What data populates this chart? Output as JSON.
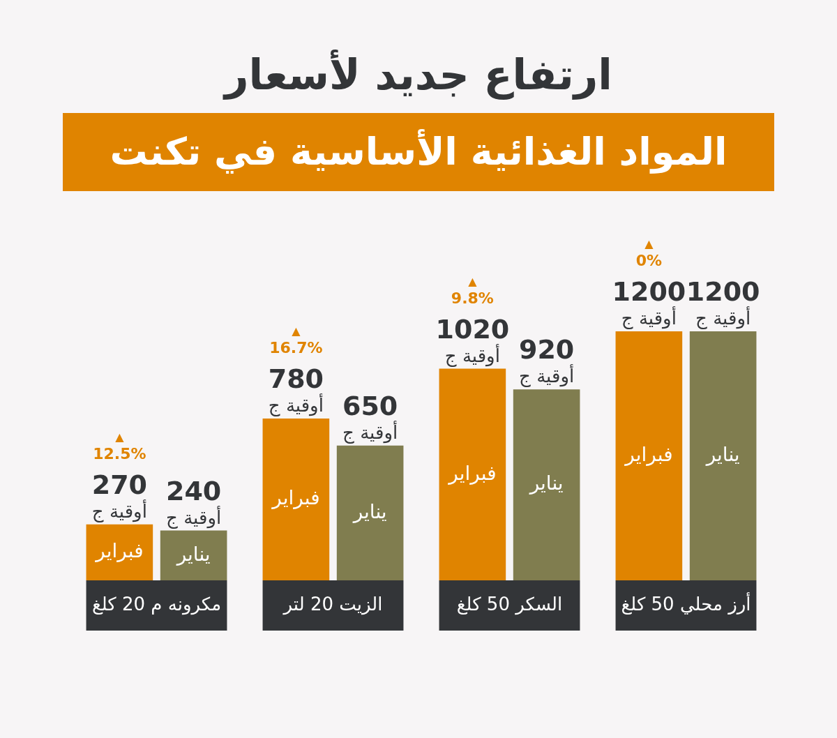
{
  "chart_data": {
    "type": "bar",
    "title": "ارتفاع جديد لأسعار",
    "subtitle": "المواد الغذائية الأساسية في تكنت",
    "categories": [
      "مكرونه م 20 كلغ",
      "الزيت 20 لتر",
      "السكر 50 كلغ",
      "أرز محلي 50 كلغ"
    ],
    "series": [
      {
        "name": "فبراير",
        "color": "#e08400",
        "values": [
          270,
          780,
          1020,
          1200
        ],
        "value_labels": [
          "270 أوقية ج",
          "780 أوقية ج",
          "1020 أوقية ج",
          "1200 أوقية ج"
        ]
      },
      {
        "name": "يناير",
        "color": "#807d4f",
        "values": [
          240,
          650,
          920,
          1200
        ],
        "value_labels": [
          "240 أوقية ج",
          "650 أوقية ج",
          "920 أوقية ج",
          "1200 أوقية ج"
        ]
      }
    ],
    "annotations": [
      "▲ 12.5%",
      "▲ 16.7%",
      "▲ 9.8%",
      "▲ 0%"
    ],
    "grid": false,
    "legend": false
  }
}
